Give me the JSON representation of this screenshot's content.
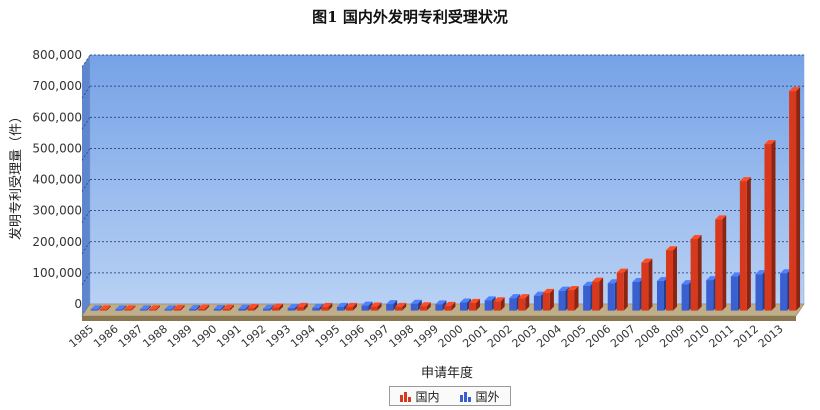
{
  "chart_data": {
    "type": "bar",
    "title": "图1   国内外发明专利受理状况",
    "xlabel": "申请年度",
    "ylabel": "发明专利受理量（件）",
    "ylim": [
      0,
      800000
    ],
    "y_ticks": [
      "0",
      "100,000",
      "200,000",
      "300,000",
      "400,000",
      "500,000",
      "600,000",
      "700,000",
      "800,000"
    ],
    "grid": true,
    "legend_position": "bottom",
    "categories": [
      "1985",
      "1986",
      "1987",
      "1988",
      "1989",
      "1990",
      "1991",
      "1992",
      "1993",
      "1994",
      "1995",
      "1996",
      "1997",
      "1998",
      "1999",
      "2000",
      "2001",
      "2002",
      "2003",
      "2004",
      "2005",
      "2006",
      "2007",
      "2008",
      "2009",
      "2010",
      "2011",
      "2012",
      "2013"
    ],
    "series": [
      {
        "name": "国内",
        "color": "#d8381c",
        "values": [
          4000,
          4000,
          4000,
          5000,
          6000,
          6000,
          8000,
          10000,
          12000,
          12000,
          12000,
          13000,
          12000,
          14000,
          15000,
          25000,
          30000,
          40000,
          57000,
          66000,
          93000,
          122000,
          154000,
          194000,
          230000,
          293000,
          416000,
          535000,
          705000
        ]
      },
      {
        "name": "国外",
        "color": "#3a5fd0",
        "values": [
          4000,
          4000,
          4000,
          4000,
          5000,
          5000,
          6000,
          6000,
          8000,
          9000,
          12000,
          16000,
          21000,
          22000,
          20000,
          26000,
          33000,
          40000,
          48000,
          64000,
          80000,
          88000,
          92000,
          95000,
          85000,
          98000,
          110000,
          117000,
          120000
        ]
      }
    ]
  }
}
